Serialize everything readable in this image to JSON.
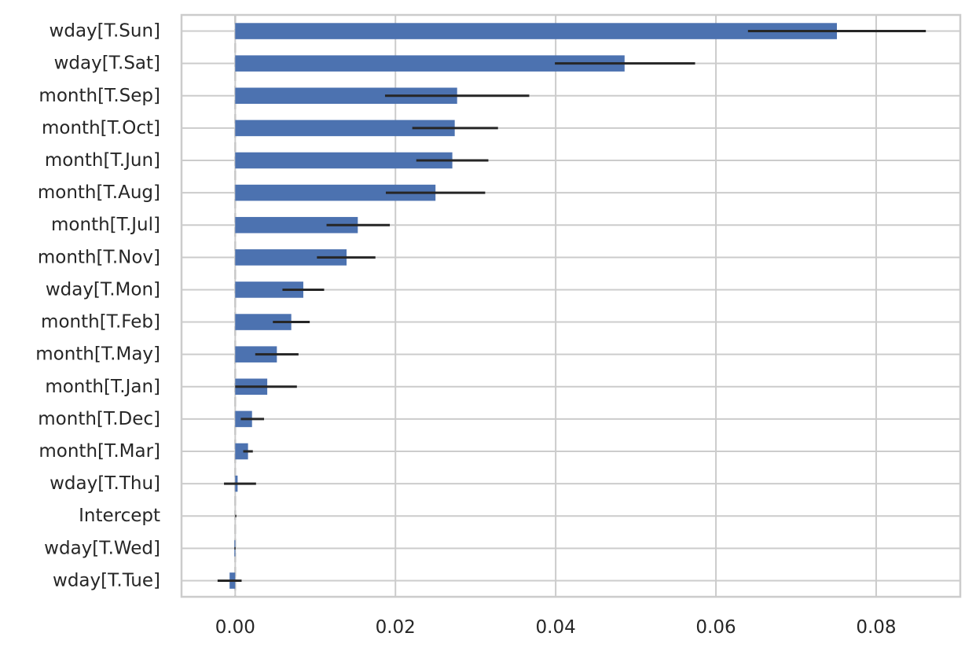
{
  "chart_data": {
    "type": "bar",
    "orientation": "horizontal",
    "categories": [
      "wday[T.Sun]",
      "wday[T.Sat]",
      "month[T.Sep]",
      "month[T.Oct]",
      "month[T.Jun]",
      "month[T.Aug]",
      "month[T.Jul]",
      "month[T.Nov]",
      "wday[T.Mon]",
      "month[T.Feb]",
      "month[T.May]",
      "month[T.Jan]",
      "month[T.Dec]",
      "month[T.Mar]",
      "wday[T.Thu]",
      "Intercept",
      "wday[T.Wed]",
      "wday[T.Tue]"
    ],
    "values": [
      0.0751,
      0.0486,
      0.0277,
      0.0274,
      0.0271,
      0.025,
      0.0153,
      0.0139,
      0.0085,
      0.007,
      0.0052,
      0.004,
      0.0021,
      0.0016,
      0.0003,
      0.0,
      -0.0001,
      -0.0007
    ],
    "error_low": [
      0.064,
      0.0399,
      0.0187,
      0.0221,
      0.0226,
      0.0188,
      0.0114,
      0.0102,
      0.0059,
      0.0047,
      0.0025,
      0.0,
      0.0007,
      0.001,
      -0.0014,
      0.0,
      -0.0001,
      -0.0022
    ],
    "error_high": [
      0.0862,
      0.0574,
      0.0367,
      0.0328,
      0.0316,
      0.0312,
      0.0193,
      0.0175,
      0.0111,
      0.0093,
      0.0079,
      0.0077,
      0.0036,
      0.0022,
      0.0026,
      0.0,
      -0.0001,
      0.0008
    ],
    "xticks": [
      0.0,
      0.02,
      0.04,
      0.06,
      0.08
    ],
    "xtick_labels": [
      "0.00",
      "0.02",
      "0.04",
      "0.06",
      "0.08"
    ],
    "xlim": [
      -0.0067,
      0.0905
    ],
    "title": "",
    "xlabel": "",
    "ylabel": "",
    "grid": true,
    "reference_line": 0.0,
    "colors": {
      "bar": "#4c72b0",
      "error_bar": "#262626",
      "grid": "#cccccc",
      "axes_edge": "#cccccc",
      "reference_line": "#c8c8c8",
      "text": "#262626"
    }
  }
}
